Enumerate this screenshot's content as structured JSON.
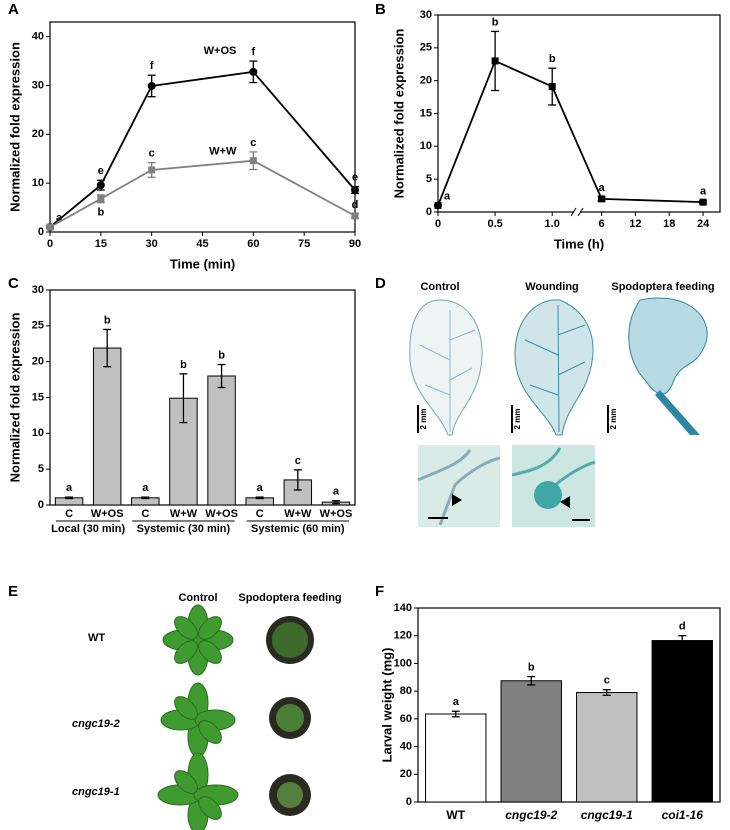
{
  "chart_data": [
    {
      "panel": "A",
      "type": "line",
      "xlabel": "Time (min)",
      "ylabel": "Normalized fold expression",
      "x": [
        0,
        15,
        30,
        60,
        90
      ],
      "xlim": [
        0,
        90
      ],
      "xticks": [
        0,
        15,
        30,
        45,
        60,
        75,
        90
      ],
      "ylim": [
        0,
        43
      ],
      "yticks": [
        0,
        10,
        20,
        30,
        40
      ],
      "series": [
        {
          "name": "W+OS",
          "color": "#000000",
          "marker": "circle",
          "values": [
            1,
            9.6,
            29.9,
            32.8,
            8.6
          ],
          "errors": [
            0.3,
            1,
            2.2,
            2.2,
            0.7
          ],
          "letters": [
            "a",
            "e",
            "f",
            "f",
            "e"
          ]
        },
        {
          "name": "W+W",
          "color": "#808080",
          "marker": "square",
          "values": [
            1,
            6.8,
            12.7,
            14.6,
            3.3
          ],
          "errors": [
            0.2,
            0.8,
            1.5,
            1.8,
            0.4
          ],
          "letters": [
            null,
            "b",
            "c",
            "c",
            "d"
          ]
        }
      ]
    },
    {
      "panel": "B",
      "type": "line",
      "xlabel": "Time (h)",
      "ylabel": "Normalized fold expression",
      "x": [
        0,
        0.5,
        1,
        6,
        24
      ],
      "xlim": [
        0,
        27
      ],
      "xbreak": [
        1.2,
        2
      ],
      "xticks": [
        0,
        0.5,
        {
          "value": 1,
          "label": "1.0"
        },
        6,
        12,
        18,
        24
      ],
      "ylim": [
        0,
        30
      ],
      "yticks": [
        0,
        5,
        10,
        15,
        20,
        25,
        30
      ],
      "series": [
        {
          "color": "#000000",
          "marker": "square",
          "values": [
            1,
            23,
            19.1,
            2,
            1.5
          ],
          "errors": [
            0.1,
            4.5,
            2.8,
            0.3,
            0.2
          ],
          "letters": [
            "a",
            "b",
            "b",
            "a",
            "a"
          ]
        }
      ]
    },
    {
      "panel": "C",
      "type": "bar",
      "ylabel": "Normalized fold expression",
      "categories": [
        "C",
        "W+OS",
        "C",
        "W+W",
        "W+OS",
        "C",
        "W+W",
        "W+OS"
      ],
      "groups": [
        {
          "label": "Local (30 min)",
          "span": 2
        },
        {
          "label": "Systemic (30 min)",
          "span": 3
        },
        {
          "label": "Systemic (60 min)",
          "span": 3
        }
      ],
      "values": [
        1,
        21.9,
        1,
        14.9,
        18,
        1,
        3.5,
        0.4
      ],
      "errors": [
        0.1,
        2.6,
        0.1,
        3.4,
        1.6,
        0.1,
        1.4,
        0.2
      ],
      "letters": [
        "a",
        "b",
        "a",
        "b",
        "b",
        "a",
        "c",
        "a"
      ],
      "colors": [
        "#c0c0c0",
        "#c0c0c0",
        "#c0c0c0",
        "#c0c0c0",
        "#c0c0c0",
        "#c0c0c0",
        "#c0c0c0",
        "#c0c0c0"
      ],
      "ylim": [
        0,
        30
      ],
      "yticks": [
        0,
        5,
        10,
        15,
        20,
        25,
        30
      ]
    },
    {
      "panel": "F",
      "type": "bar",
      "ylabel": "Larval weight (mg)",
      "categories": [
        "WT",
        "cngc19-2",
        "cngc19-1",
        "coi1-16"
      ],
      "italic": [
        false,
        true,
        true,
        true
      ],
      "values": [
        63.5,
        87.5,
        79,
        116.5
      ],
      "errors": [
        2,
        3,
        2,
        3.5
      ],
      "letters": [
        "a",
        "b",
        "c",
        "d"
      ],
      "colors": [
        "#ffffff",
        "#808080",
        "#c0c0c0",
        "#000000"
      ],
      "ylim": [
        0,
        140
      ],
      "yticks": [
        0,
        20,
        40,
        60,
        80,
        100,
        120,
        140
      ]
    }
  ],
  "images": {
    "D": {
      "panel": "D",
      "columns": [
        "Control",
        "Wounding",
        "Spodoptera feeding"
      ],
      "scale_bars": [
        "2 mm",
        "2 mm",
        "2 mm"
      ]
    },
    "E": {
      "panel": "E",
      "columns": [
        "Control",
        "Spodoptera feeding"
      ],
      "rows": [
        "WT",
        "cngc19-2",
        "cngc19-1"
      ]
    }
  }
}
